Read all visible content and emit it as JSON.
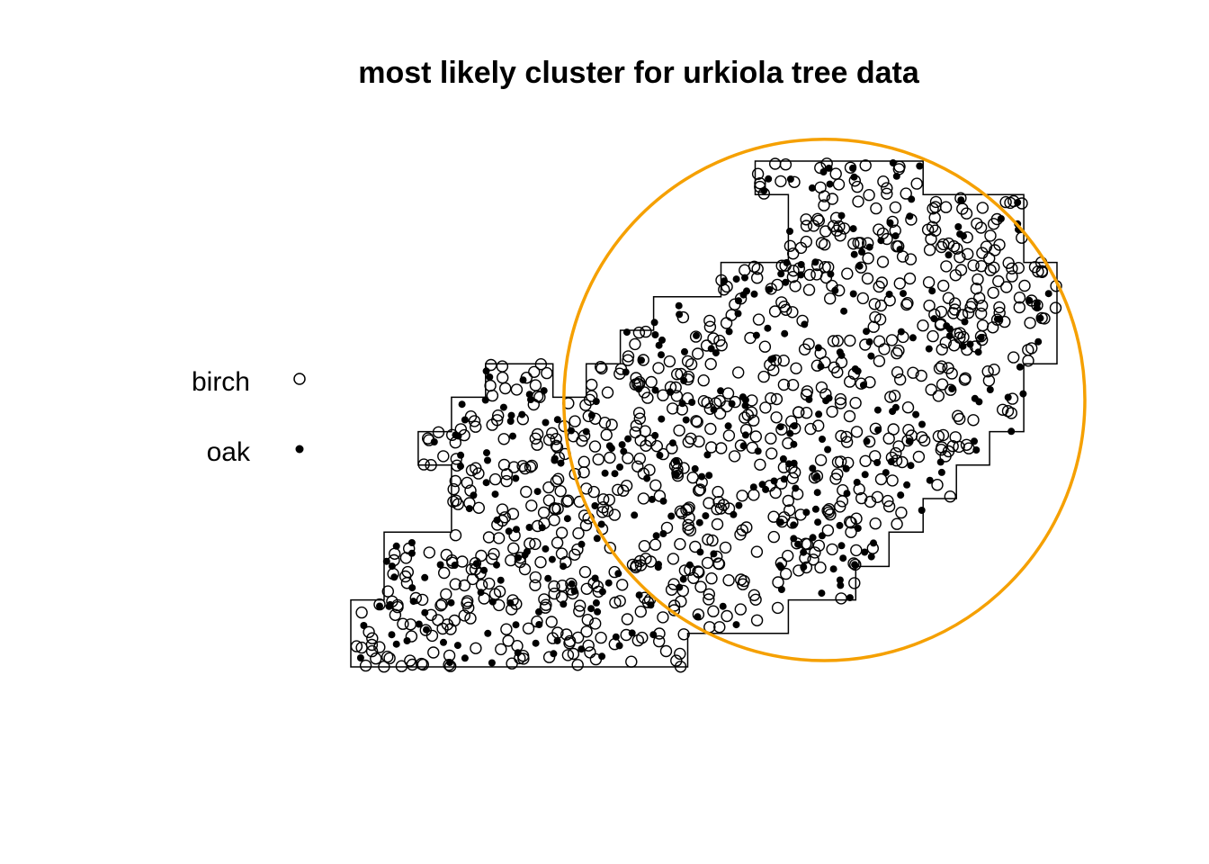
{
  "chart_data": {
    "type": "scatter",
    "title": "most likely cluster for urkiola tree data",
    "xlabel": "",
    "ylabel": "",
    "grid": false,
    "legend_placement": "left",
    "colors": {
      "points": "#000000",
      "cluster_circle": "#f5a000",
      "window": "#000000"
    },
    "series": [
      {
        "name": "birch",
        "marker": "open-circle"
      },
      {
        "name": "oak",
        "marker": "filled-dot"
      }
    ],
    "window_polygon": [
      [
        0,
        0
      ],
      [
        37.5,
        0
      ],
      [
        37.5,
        3.7
      ],
      [
        48.7,
        3.7
      ],
      [
        48.7,
        7.4
      ],
      [
        56.2,
        7.4
      ],
      [
        56.2,
        11.1
      ],
      [
        59.9,
        11.1
      ],
      [
        59.9,
        14.9
      ],
      [
        63.7,
        14.9
      ],
      [
        63.7,
        18.6
      ],
      [
        67.4,
        18.6
      ],
      [
        67.4,
        22.3
      ],
      [
        71.1,
        22.3
      ],
      [
        71.1,
        26
      ],
      [
        74.9,
        26
      ],
      [
        74.9,
        33.5
      ],
      [
        78.6,
        33.5
      ],
      [
        78.6,
        44.7
      ],
      [
        74.9,
        44.7
      ],
      [
        74.9,
        52.2
      ],
      [
        63.7,
        52.2
      ],
      [
        63.7,
        55.9
      ],
      [
        45,
        55.9
      ],
      [
        45,
        52.2
      ],
      [
        48.7,
        52.2
      ],
      [
        48.7,
        44.7
      ],
      [
        41.2,
        44.7
      ],
      [
        41.2,
        40.9
      ],
      [
        33.7,
        40.9
      ],
      [
        33.7,
        37.2
      ],
      [
        30,
        37.2
      ],
      [
        30,
        33.5
      ],
      [
        26.2,
        33.5
      ],
      [
        26.2,
        29.8
      ],
      [
        22.5,
        29.8
      ],
      [
        22.5,
        33.5
      ],
      [
        15,
        33.5
      ],
      [
        15,
        29.8
      ],
      [
        11.2,
        29.8
      ],
      [
        11.2,
        26
      ],
      [
        7.5,
        26
      ],
      [
        7.5,
        22.3
      ],
      [
        11.2,
        22.3
      ],
      [
        11.2,
        14.9
      ],
      [
        3.7,
        14.9
      ],
      [
        3.7,
        7.4
      ],
      [
        0,
        7.4
      ]
    ],
    "cluster_circle": {
      "center": [
        52.7,
        29.5
      ],
      "radius": 29
    },
    "xlim": [
      0,
      82.5
    ],
    "ylim": [
      0,
      55.9
    ],
    "n_birch": 886,
    "n_oak": 359
  }
}
